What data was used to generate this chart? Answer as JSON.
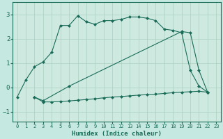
{
  "xlabel": "Humidex (Indice chaleur)",
  "bg_color": "#c5e8e0",
  "plot_bg_color": "#ceeae0",
  "line_color": "#1a6b58",
  "grid_color": "#aacfbf",
  "xlim": [
    -0.5,
    23.5
  ],
  "ylim": [
    -1.4,
    3.5
  ],
  "yticks": [
    -1,
    0,
    1,
    2,
    3
  ],
  "xticks": [
    0,
    1,
    2,
    3,
    4,
    5,
    6,
    7,
    8,
    9,
    10,
    11,
    12,
    13,
    14,
    15,
    16,
    17,
    18,
    19,
    20,
    21,
    22,
    23
  ],
  "line1_x": [
    0,
    1,
    2,
    3,
    4,
    5,
    6,
    7,
    8,
    9,
    10,
    11,
    12,
    13,
    14,
    15,
    16,
    17,
    18,
    19,
    20,
    21,
    22
  ],
  "line1_y": [
    -0.4,
    0.3,
    0.85,
    1.05,
    1.45,
    2.55,
    2.55,
    2.95,
    2.7,
    2.6,
    2.75,
    2.75,
    2.8,
    2.9,
    2.9,
    2.85,
    2.75,
    2.4,
    2.35,
    2.25,
    0.7,
    0.05,
    -0.2
  ],
  "line2_x": [
    2,
    3,
    6,
    19,
    20,
    21,
    22
  ],
  "line2_y": [
    -0.4,
    -0.55,
    0.05,
    2.3,
    2.25,
    0.7,
    -0.2
  ],
  "line3_x": [
    2,
    3,
    4,
    5,
    6,
    7,
    8,
    9,
    10,
    11,
    12,
    13,
    14,
    15,
    16,
    17,
    18,
    19,
    20,
    21,
    22
  ],
  "line3_y": [
    -0.4,
    -0.6,
    -0.6,
    -0.58,
    -0.56,
    -0.53,
    -0.5,
    -0.47,
    -0.43,
    -0.4,
    -0.38,
    -0.35,
    -0.32,
    -0.3,
    -0.28,
    -0.25,
    -0.22,
    -0.2,
    -0.18,
    -0.16,
    -0.2
  ],
  "markersize": 2.5
}
